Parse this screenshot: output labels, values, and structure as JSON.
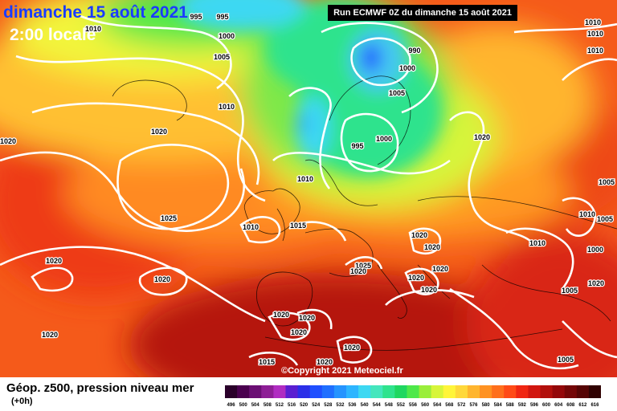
{
  "header": {
    "date": "dimanche 15 août 2021",
    "local_time": "2:00 locale",
    "run": "Run ECMWF 0Z du dimanche 15 août 2021"
  },
  "footer": {
    "copyright": "©Copyright 2021 Meteociel.fr"
  },
  "legend": {
    "title": "Géop. z500, pression niveau mer",
    "offset": "(+0h)",
    "scale_values": [
      "496",
      "500",
      "504",
      "508",
      "512",
      "516",
      "520",
      "524",
      "528",
      "532",
      "536",
      "540",
      "544",
      "548",
      "552",
      "556",
      "560",
      "564",
      "568",
      "572",
      "576",
      "580",
      "584",
      "588",
      "592",
      "596",
      "600",
      "604",
      "608",
      "612",
      "616"
    ],
    "scale_colors": [
      "#2a002a",
      "#4a004f",
      "#6b0f74",
      "#8e1e96",
      "#b02cc1",
      "#5a1fd1",
      "#2b2fe8",
      "#1f4fff",
      "#1f6fff",
      "#2594ff",
      "#2db5ff",
      "#3dd8f2",
      "#44e6bd",
      "#2fe38d",
      "#1fd760",
      "#4ee84a",
      "#9aee3b",
      "#d7f53a",
      "#fff53a",
      "#ffd83a",
      "#ffb52e",
      "#ff9222",
      "#ff6f1c",
      "#ff4a16",
      "#f02612",
      "#d1160f",
      "#b2100c",
      "#94080a",
      "#740607",
      "#560404",
      "#300202"
    ]
  },
  "isobars": {
    "labels": [
      {
        "text": "1010",
        "id": "isobar-1010-nw"
      },
      {
        "text": "995",
        "id": "isobar-995-north-a"
      },
      {
        "text": "995",
        "id": "isobar-995-north-b"
      },
      {
        "text": "1000",
        "id": "isobar-1000-north"
      },
      {
        "text": "1005",
        "id": "isobar-1005-north"
      },
      {
        "text": "1010",
        "id": "isobar-1010-iceland"
      },
      {
        "text": "1020",
        "id": "isobar-1020-atlantic-w"
      },
      {
        "text": "1020",
        "id": "isobar-1020-atlantic"
      },
      {
        "text": "1025",
        "id": "isobar-1025-azores"
      },
      {
        "text": "1020",
        "id": "isobar-1020-sw"
      },
      {
        "text": "1020",
        "id": "isobar-1020-iberia-w"
      },
      {
        "text": "990",
        "id": "isobar-990-scandinavia"
      },
      {
        "text": "1000",
        "id": "isobar-1000-scandinavia"
      },
      {
        "text": "1005",
        "id": "isobar-1005-scandinavia"
      },
      {
        "text": "995",
        "id": "isobar-995-baltic"
      },
      {
        "text": "1000",
        "id": "isobar-1000-baltic"
      },
      {
        "text": "1010",
        "id": "isobar-1010-northsea"
      },
      {
        "text": "1010",
        "id": "isobar-1010-ireland"
      },
      {
        "text": "1015",
        "id": "isobar-1015-uk"
      },
      {
        "text": "1020",
        "id": "isobar-1020-russia"
      },
      {
        "text": "1020",
        "id": "isobar-1020-alps"
      },
      {
        "text": "1020",
        "id": "isobar-1020-hungary"
      },
      {
        "text": "1025",
        "id": "isobar-1025-alps"
      },
      {
        "text": "1020",
        "id": "isobar-1020-italy-n"
      },
      {
        "text": "1020",
        "id": "isobar-1020-balkans"
      },
      {
        "text": "1020",
        "id": "isobar-1020-italy"
      },
      {
        "text": "1020",
        "id": "isobar-1020-adriatic"
      },
      {
        "text": "1020",
        "id": "isobar-1020-spain-a"
      },
      {
        "text": "1020",
        "id": "isobar-1020-spain-b"
      },
      {
        "text": "1020",
        "id": "isobar-1020-spain-c"
      },
      {
        "text": "1020",
        "id": "isobar-1020-africa"
      },
      {
        "text": "1015",
        "id": "isobar-1015-africa"
      },
      {
        "text": "1020",
        "id": "isobar-1020-mediterranean"
      },
      {
        "text": "1010",
        "id": "isobar-1010-ukraine"
      },
      {
        "text": "1005",
        "id": "isobar-1005-east"
      },
      {
        "text": "1005",
        "id": "isobar-1005-turkey"
      },
      {
        "text": "1010",
        "id": "isobar-1010-east"
      },
      {
        "text": "1005",
        "id": "isobar-1005-east-b"
      },
      {
        "text": "1000",
        "id": "isobar-1000-east"
      },
      {
        "text": "1020",
        "id": "isobar-1020-russia-b"
      },
      {
        "text": "1005",
        "id": "isobar-1005-mideast"
      },
      {
        "text": "1010",
        "id": "isobar-1010-ne-a"
      },
      {
        "text": "1010",
        "id": "isobar-1010-ne-b"
      },
      {
        "text": "1010",
        "id": "isobar-1010-ne-c"
      },
      {
        "text": "1020",
        "id": "isobar-1020-west"
      }
    ]
  }
}
